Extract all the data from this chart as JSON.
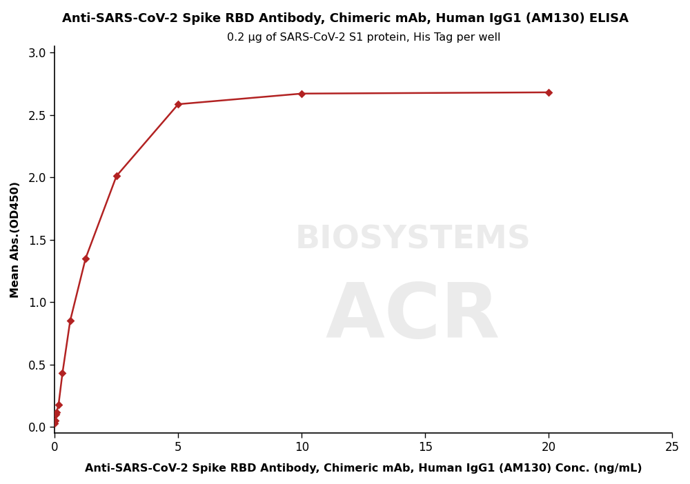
{
  "title": "Anti-SARS-CoV-2 Spike RBD Antibody, Chimeric mAb, Human IgG1 (AM130) ELISA",
  "subtitle": "0.2 μg of SARS-CoV-2 S1 protein, His Tag per well",
  "xlabel": "Anti-SARS-CoV-2 Spike RBD Antibody, Chimeric mAb, Human IgG1 (AM130) Conc. (ng/mL)",
  "ylabel": "Mean Abs.(OD450)",
  "watermark": "BIOSYSTEMS",
  "scatter_x": [
    0.0,
    0.02,
    0.04,
    0.08,
    0.156,
    0.3125,
    0.625,
    1.25,
    2.5,
    5.0,
    10.0,
    20.0
  ],
  "scatter_y": [
    0.03,
    0.05,
    0.1,
    0.12,
    0.18,
    0.43,
    0.85,
    1.35,
    2.01,
    2.585,
    2.67,
    2.68
  ],
  "color": "#b22222",
  "marker": "D",
  "marker_size": 6,
  "line_width": 1.8,
  "xlim": [
    0,
    25
  ],
  "ylim": [
    -0.05,
    3.05
  ],
  "xticks": [
    0,
    5,
    10,
    15,
    20,
    25
  ],
  "yticks": [
    0.0,
    0.5,
    1.0,
    1.5,
    2.0,
    2.5,
    3.0
  ],
  "title_fontsize": 13,
  "subtitle_fontsize": 11.5,
  "label_fontsize": 11.5,
  "tick_fontsize": 12,
  "watermark_fontsize": 34,
  "watermark_color": "#c8c8c8",
  "watermark_alpha": 0.35,
  "background_color": "#ffffff"
}
